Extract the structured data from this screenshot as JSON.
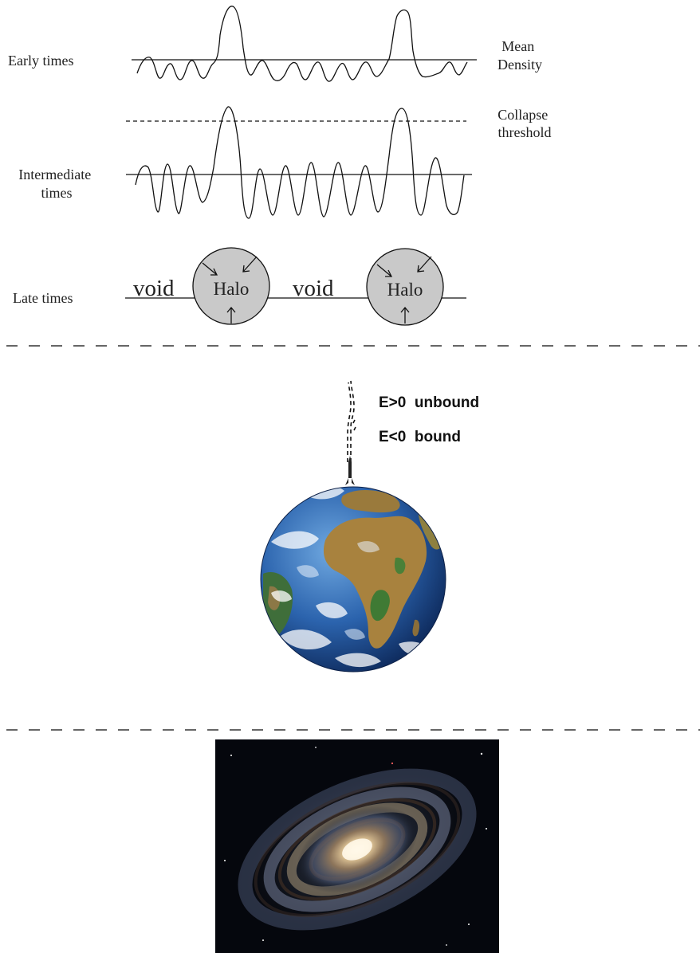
{
  "panel1": {
    "rows": [
      {
        "label_lines": [
          "Early times"
        ]
      },
      {
        "label_lines": [
          "Intermediate",
          "times"
        ]
      },
      {
        "label_lines": [
          "Late times"
        ]
      }
    ],
    "mean_density_lines": [
      "Mean",
      "Density"
    ],
    "collapse_threshold_lines": [
      "Collapse",
      "threshold"
    ],
    "void_label": "void",
    "halo_label": "Halo"
  },
  "panel2": {
    "unbound_label": "E>0  unbound",
    "bound_label": "E<0  bound",
    "earth_picture": "globe-africa-view"
  },
  "panel3": {
    "galaxy_picture": "spiral-galaxy-photo"
  },
  "colors": {
    "line": "#111111",
    "halo_fill": "#c9c9c9",
    "ocean": "#2f6fb8",
    "land": "#a8823e",
    "space": "#05070d"
  }
}
